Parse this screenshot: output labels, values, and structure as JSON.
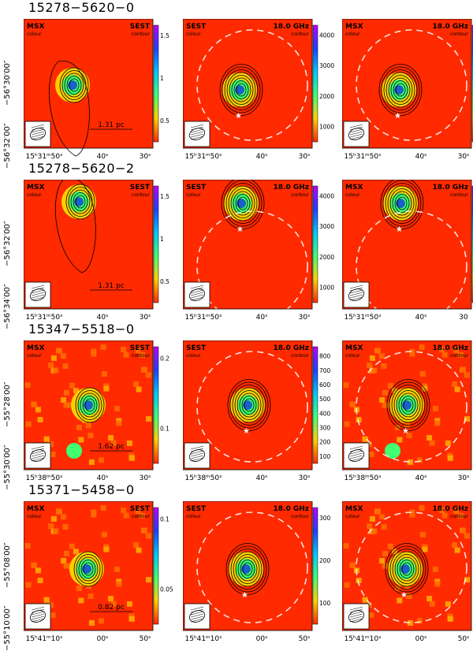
{
  "figure": {
    "rows": [
      {
        "title": "15278−5620−0",
        "dec_labels": [
          "−56°30′00″",
          "−56°32′00″"
        ],
        "ra_labels": [
          [
            "15ʰ31ᵐ50ˢ",
            "40ˢ",
            "30ˢ"
          ],
          [
            "15ʰ31ᵐ50ˢ",
            "40ˢ",
            "30ˢ"
          ],
          [
            "15ʰ31ᵐ50ˢ",
            "40ˢ",
            "30ˢ"
          ]
        ],
        "colorbars": [
          [
            "1.5",
            "1",
            "0.5"
          ],
          [
            "4000",
            "3000",
            "2000",
            "1000"
          ],
          [
            "4000",
            "3000",
            "2000",
            "1000"
          ]
        ],
        "colorbar_values": [
          [
            1.5,
            1.0,
            0.5
          ],
          [
            4000,
            3000,
            2000,
            1000
          ],
          [
            4000,
            3000,
            2000,
            1000
          ]
        ],
        "scale_bar": "1.31 pc",
        "panels": [
          {
            "colour_tel": "MSX",
            "colour_word": "colour",
            "contour_tel": "SEST",
            "contour_word": "contour"
          },
          {
            "colour_tel": "SEST",
            "colour_word": "colour",
            "contour_tel": "18.0 GHz",
            "contour_word": "contour"
          },
          {
            "colour_tel": "MSX",
            "colour_word": "colour",
            "contour_tel": "18.0 GHz",
            "contour_word": "contour"
          }
        ]
      },
      {
        "title": "15278−5620−2",
        "dec_labels": [
          "−56°32′00″",
          "−56°34′00″"
        ],
        "ra_labels": [
          [
            "15ʰ31ᵐ50ˢ",
            "40ˢ",
            "30ˢ"
          ],
          [
            "15ʰ31ᵐ50ˢ",
            "40ˢ",
            "30ˢ"
          ],
          [
            "15ʰ31ᵐ50ˢ",
            "40ˢ",
            "30"
          ]
        ],
        "colorbars": [
          [
            "1.5",
            "1",
            "0.5"
          ],
          [
            "4000",
            "3000",
            "2000",
            "1000"
          ],
          [
            "4000",
            "3000",
            "2000",
            "1000"
          ]
        ],
        "colorbar_values": [
          [
            1.5,
            1.0,
            0.5
          ],
          [
            4000,
            3000,
            2000,
            1000
          ],
          [
            4000,
            3000,
            2000,
            1000
          ]
        ],
        "scale_bar": "1.31 pc",
        "panels": [
          {
            "colour_tel": "MSX",
            "colour_word": "colour",
            "contour_tel": "SEST",
            "contour_word": "contour"
          },
          {
            "colour_tel": "SEST",
            "colour_word": "colour",
            "contour_tel": "18.0 GHz",
            "contour_word": "contour"
          },
          {
            "colour_tel": "MSX",
            "colour_word": "colour",
            "contour_tel": "18.0 GHz",
            "contour_word": "contour"
          }
        ]
      },
      {
        "title": "15347−5518−0",
        "dec_labels": [
          "−55°28′00″",
          "−55°30′00″"
        ],
        "ra_labels": [
          [
            "15ʰ38ᵐ50ˢ",
            "40ˢ",
            "30ˢ"
          ],
          [
            "15ʰ38ᵐ50ˢ",
            "40ˢ",
            "30ˢ"
          ],
          [
            "15ʰ38ᵐ50ˢ",
            "40ˢ",
            "30ˢ"
          ]
        ],
        "colorbars": [
          [
            "0.2",
            "0.1"
          ],
          [
            "800",
            "700",
            "600",
            "500",
            "400",
            "300",
            "200",
            "100"
          ],
          []
        ],
        "colorbar_values": [
          [
            0.2,
            0.1
          ],
          [
            800,
            700,
            600,
            500,
            400,
            300,
            200,
            100
          ],
          []
        ],
        "scale_bar": "1.62 pc",
        "panels": [
          {
            "colour_tel": "MSX",
            "colour_word": "colour",
            "contour_tel": "SEST",
            "contour_word": "contour"
          },
          {
            "colour_tel": "SEST",
            "colour_word": "colour",
            "contour_tel": "18.0 GHz",
            "contour_word": "contour"
          },
          {
            "colour_tel": "MSX",
            "colour_word": "colour",
            "contour_tel": "18.0 GHz",
            "contour_word": "contour"
          }
        ]
      },
      {
        "title": "15371−5458−0",
        "dec_labels": [
          "−55°08′00″",
          "−55°10′00″"
        ],
        "ra_labels": [
          [
            "15ʰ41ᵐ10ˢ",
            "00ˢ",
            "50ˢ"
          ],
          [
            "15ʰ41ᵐ10ˢ",
            "00ˢ",
            "50ˢ"
          ],
          [
            "15ʰ41ᵐ10ˢ",
            "00ˢ",
            "50ˢ"
          ]
        ],
        "colorbars": [
          [
            "0.1",
            "0.05"
          ],
          [
            "300",
            "200",
            "100"
          ],
          []
        ],
        "colorbar_values": [
          [
            0.1,
            0.05
          ],
          [
            300,
            200,
            100
          ],
          []
        ],
        "scale_bar": "0.82 pc",
        "panels": [
          {
            "colour_tel": "MSX",
            "colour_word": "colour",
            "contour_tel": "SEST",
            "contour_word": "contour"
          },
          {
            "colour_tel": "SEST",
            "colour_word": "colour",
            "contour_tel": "18.0 GHz",
            "contour_word": "contour"
          },
          {
            "colour_tel": "MSX",
            "colour_word": "colour",
            "contour_tel": "18.0 GHz",
            "contour_word": "contour"
          }
        ]
      }
    ]
  }
}
